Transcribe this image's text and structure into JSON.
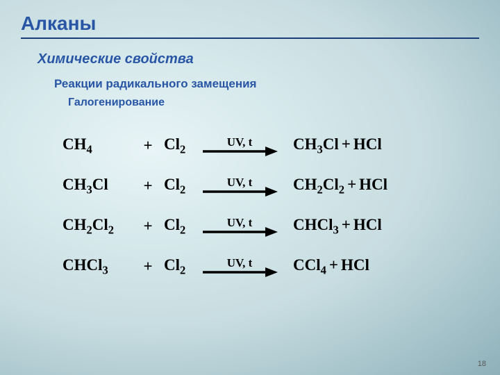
{
  "title": "Алканы",
  "subtitle": "Химические свойства",
  "subsubtitle": "Реакции радикального замещения",
  "subsubsubtitle": "Галогенирование",
  "title_fontsize": 28,
  "subtitle_fontsize": 20,
  "subsubtitle_fontsize": 17,
  "subsubsubtitle_fontsize": 16,
  "title_color": "#2856a5",
  "rule_color": "#1a3d7a",
  "text_color": "#000000",
  "arrow_color": "#000000",
  "condition_label": "UV, t",
  "reactions": [
    {
      "r1_base": "CH",
      "r1_sub": "4",
      "r1_tail": "",
      "r2_base": "Cl",
      "r2_sub": "2",
      "p1": "CH<sub>3</sub>Cl",
      "p2": "HCl"
    },
    {
      "r1_base": "CH",
      "r1_sub": "3",
      "r1_tail": "Cl",
      "r2_base": "Cl",
      "r2_sub": "2",
      "p1": "CH<sub>2</sub>Cl<sub>2</sub>",
      "p2": "HCl"
    },
    {
      "r1_base": "CH",
      "r1_sub": "2",
      "r1_tail": "Cl<sub>2</sub>",
      "r2_base": "Cl",
      "r2_sub": "2",
      "p1": "CHCl<sub>3</sub>",
      "p2": "HCl"
    },
    {
      "r1_base": "CHCl",
      "r1_sub": "3",
      "r1_tail": "",
      "r2_base": "Cl",
      "r2_sub": "2",
      "p1": "CCl<sub>4</sub>",
      "p2": "HCl"
    }
  ],
  "page_number": "18"
}
